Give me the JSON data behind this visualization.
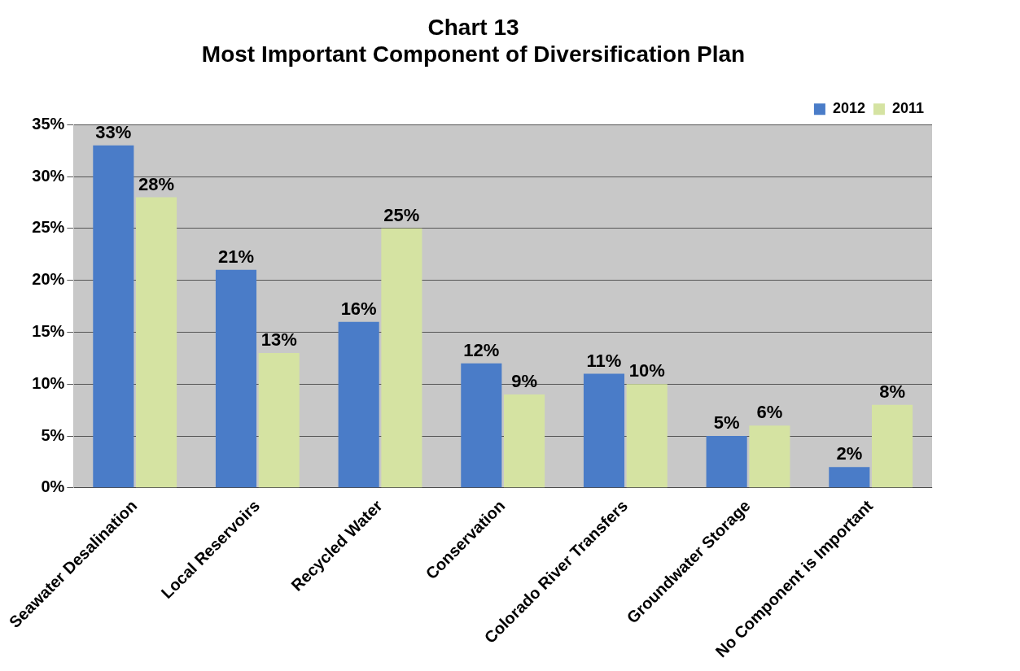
{
  "chart_data": {
    "type": "bar",
    "title": "Chart 13\nMost Important Component of Diversification Plan",
    "categories": [
      "Seawater Desalination",
      "Local Reservoirs",
      "Recycled Water",
      "Conservation",
      "Colorado River Transfers",
      "Groundwater Storage",
      "No Component is Important"
    ],
    "series": [
      {
        "name": "2012",
        "color": "#4a7cc8",
        "values": [
          33,
          21,
          16,
          12,
          11,
          5,
          2
        ],
        "value_labels": [
          "33%",
          "21%",
          "16%",
          "12%",
          "11%",
          "5%",
          "2%"
        ]
      },
      {
        "name": "2011",
        "color": "#d5e3a2",
        "values": [
          28,
          13,
          25,
          9,
          10,
          6,
          8
        ],
        "value_labels": [
          "28%",
          "13%",
          "25%",
          "9%",
          "10%",
          "6%",
          "8%"
        ]
      }
    ],
    "ylim": [
      0,
      35
    ],
    "yticks": [
      {
        "value": 0,
        "label": "0%"
      },
      {
        "value": 5,
        "label": "5%"
      },
      {
        "value": 10,
        "label": "10%"
      },
      {
        "value": 15,
        "label": "15%"
      },
      {
        "value": 20,
        "label": "20%"
      },
      {
        "value": 25,
        "label": "25%"
      },
      {
        "value": 30,
        "label": "30%"
      },
      {
        "value": 35,
        "label": "35%"
      }
    ],
    "grid": "y",
    "legend": "top right"
  }
}
